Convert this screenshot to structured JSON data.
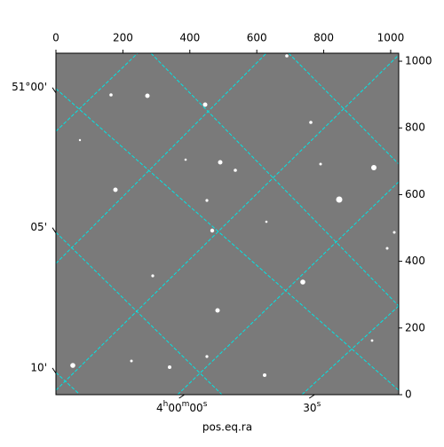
{
  "chart_data": {
    "type": "image",
    "xlabel": "pos.eq.ra",
    "xlim": [
      0,
      1024
    ],
    "xticks": [
      0,
      200,
      400,
      600,
      800,
      1000
    ],
    "ylim": [
      0,
      1024
    ],
    "yticks": [
      0,
      200,
      400,
      600,
      800,
      1000
    ],
    "declim": [
      51.181,
      50.978
    ],
    "dec_ticks": [
      {
        "value": 51.0,
        "label": "51°00'"
      },
      {
        "value": 51.0833,
        "label": "05'"
      },
      {
        "value": 51.1667,
        "label": "10'"
      }
    ],
    "ralim": [
      -29,
      50
    ],
    "ra_ticks": [
      {
        "value": 0,
        "label": "4h00m00s"
      },
      {
        "value": 30,
        "label": "30s"
      }
    ],
    "grid": true,
    "grid_color": "#00e5e5"
  }
}
